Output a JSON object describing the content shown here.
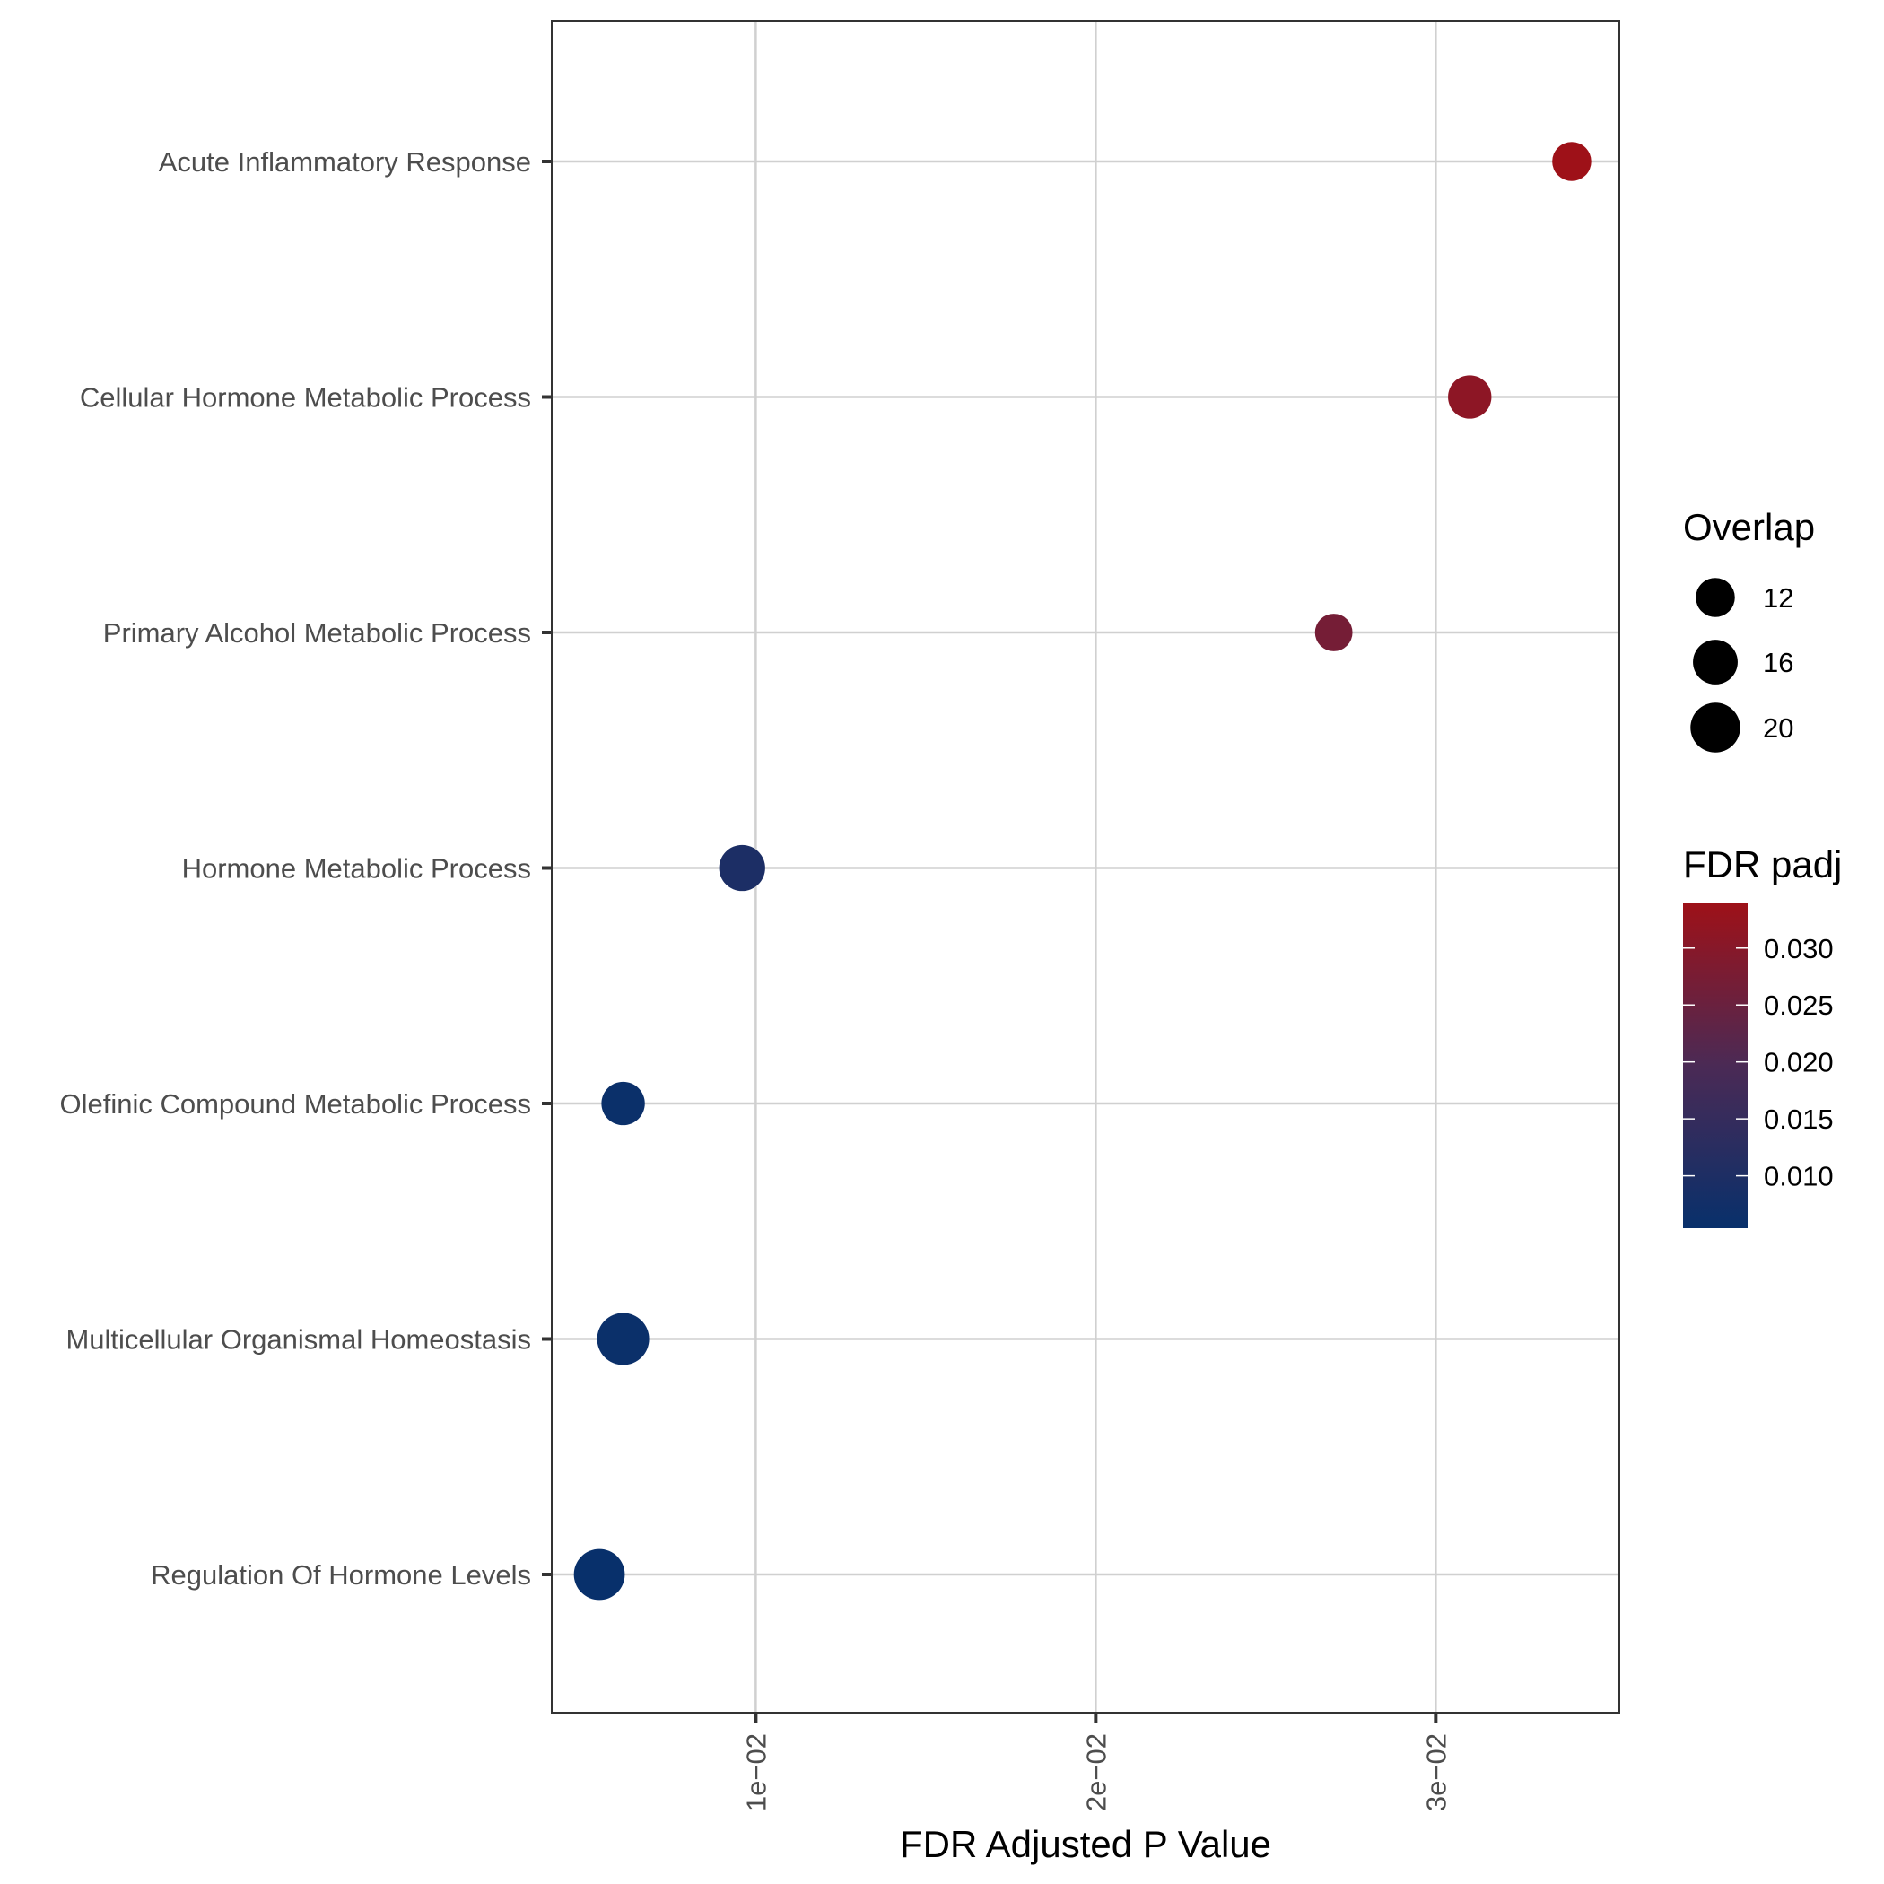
{
  "chart_data": {
    "type": "scatter",
    "xlabel": "FDR Adjusted P Value",
    "ylabel": "",
    "xlim": [
      0.004,
      0.0354
    ],
    "x_ticks": [
      {
        "value": 0.01,
        "label": "1e−02"
      },
      {
        "value": 0.02,
        "label": "2e−02"
      },
      {
        "value": 0.03,
        "label": "3e−02"
      }
    ],
    "categories": [
      "Acute Inflammatory Response",
      "Cellular Hormone Metabolic Process",
      "Primary Alcohol Metabolic Process",
      "Hormone Metabolic Process",
      "Olefinic Compound Metabolic Process",
      "Multicellular Organismal Homeostasis",
      "Regulation Of Hormone Levels"
    ],
    "points": [
      {
        "term": "Acute Inflammatory Response",
        "x": 0.034,
        "fdr": 0.034,
        "overlap": 12
      },
      {
        "term": "Cellular Hormone Metabolic Process",
        "x": 0.031,
        "fdr": 0.031,
        "overlap": 15
      },
      {
        "term": "Primary Alcohol Metabolic Process",
        "x": 0.027,
        "fdr": 0.027,
        "overlap": 11
      },
      {
        "term": "Hormone Metabolic Process",
        "x": 0.0096,
        "fdr": 0.0096,
        "overlap": 17
      },
      {
        "term": "Olefinic Compound Metabolic Process",
        "x": 0.0061,
        "fdr": 0.0061,
        "overlap": 15
      },
      {
        "term": "Multicellular Organismal Homeostasis",
        "x": 0.0061,
        "fdr": 0.0061,
        "overlap": 22
      },
      {
        "term": "Regulation Of Hormone Levels",
        "x": 0.0054,
        "fdr": 0.0054,
        "overlap": 21
      }
    ],
    "grid": true,
    "legend_position": "right",
    "size_legend": {
      "title": "Overlap",
      "entries": [
        12,
        16,
        20
      ]
    },
    "color_legend": {
      "title": "FDR padj",
      "ticks": [
        {
          "value": 0.01,
          "label": "0.010"
        },
        {
          "value": 0.015,
          "label": "0.015"
        },
        {
          "value": 0.02,
          "label": "0.020"
        },
        {
          "value": 0.025,
          "label": "0.025"
        },
        {
          "value": 0.03,
          "label": "0.030"
        }
      ],
      "range": [
        0.0054,
        0.034
      ],
      "low_color": "#08306B",
      "high_color": "#9E1118"
    }
  }
}
